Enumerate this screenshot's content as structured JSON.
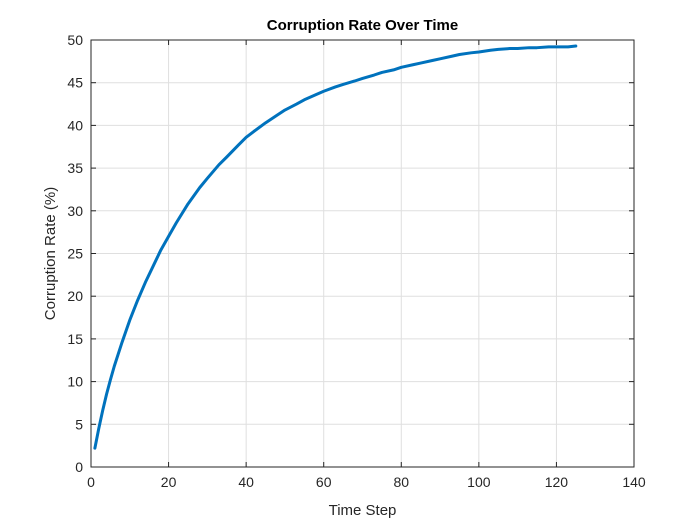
{
  "colors": {
    "line": "#0072BD",
    "grid": "#dfdfdf",
    "axis": "#262626",
    "background": "#ffffff"
  },
  "chart_data": {
    "type": "line",
    "title": "Corruption Rate Over Time",
    "xlabel": "Time Step",
    "ylabel": "Corruption Rate (%)",
    "xlim": [
      0,
      140
    ],
    "ylim": [
      0,
      50
    ],
    "xticks": [
      0,
      20,
      40,
      60,
      80,
      100,
      120,
      140
    ],
    "yticks": [
      0,
      5,
      10,
      15,
      20,
      25,
      30,
      35,
      40,
      45,
      50
    ],
    "grid": true,
    "box": true,
    "series": [
      {
        "color": "#0072BD",
        "x": [
          1,
          2,
          3,
          4,
          5,
          6,
          8,
          10,
          12,
          14,
          16,
          18,
          20,
          22,
          25,
          28,
          30,
          33,
          35,
          38,
          40,
          42,
          45,
          48,
          50,
          53,
          55,
          58,
          60,
          63,
          65,
          68,
          70,
          73,
          75,
          78,
          80,
          83,
          85,
          88,
          90,
          93,
          95,
          98,
          100,
          103,
          105,
          108,
          110,
          113,
          115,
          118,
          120,
          123,
          125
        ],
        "y": [
          2.2,
          4.5,
          6.6,
          8.5,
          10.2,
          11.8,
          14.6,
          17.2,
          19.5,
          21.6,
          23.5,
          25.4,
          27.0,
          28.6,
          30.8,
          32.7,
          33.8,
          35.4,
          36.3,
          37.7,
          38.6,
          39.3,
          40.3,
          41.2,
          41.8,
          42.5,
          43.0,
          43.6,
          44.0,
          44.5,
          44.8,
          45.2,
          45.5,
          45.9,
          46.2,
          46.5,
          46.8,
          47.1,
          47.3,
          47.6,
          47.8,
          48.1,
          48.3,
          48.5,
          48.6,
          48.8,
          48.9,
          49.0,
          49.0,
          49.1,
          49.1,
          49.2,
          49.2,
          49.2,
          49.3
        ]
      }
    ]
  }
}
